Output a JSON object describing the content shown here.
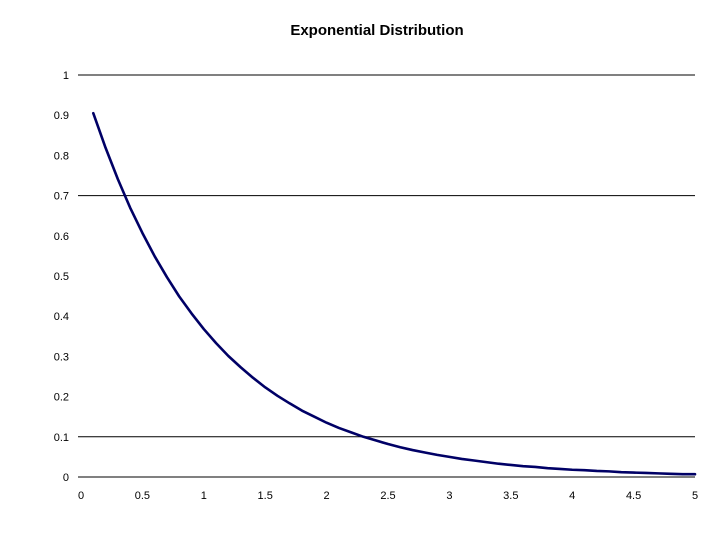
{
  "chart_data": {
    "type": "line",
    "title": "Exponential Distribution",
    "xlabel": "",
    "ylabel": "",
    "xlim": [
      0,
      5
    ],
    "ylim": [
      0,
      1
    ],
    "x_ticks": [
      "0",
      "0.5",
      "1",
      "1.5",
      "2",
      "2.5",
      "3",
      "3.5",
      "4",
      "4.5",
      "5"
    ],
    "y_ticks": [
      "0",
      "0.1",
      "0.2",
      "0.3",
      "0.4",
      "0.5",
      "0.6",
      "0.7",
      "0.8",
      "0.9",
      "1"
    ],
    "gridlines_y": [
      0.1,
      0.7,
      1
    ],
    "legend": "none",
    "series": [
      {
        "color": "#000066",
        "x": [
          0.1,
          0.2,
          0.3,
          0.4,
          0.5,
          0.6,
          0.7,
          0.8,
          0.9,
          1.0,
          1.1,
          1.2,
          1.3,
          1.4,
          1.5,
          1.6,
          1.7,
          1.8,
          1.9,
          2.0,
          2.1,
          2.2,
          2.3,
          2.4,
          2.5,
          2.6,
          2.7,
          2.8,
          2.9,
          3.0,
          3.1,
          3.2,
          3.3,
          3.4,
          3.5,
          3.6,
          3.7,
          3.8,
          3.9,
          4.0,
          4.1,
          4.2,
          4.3,
          4.4,
          4.5,
          4.6,
          4.7,
          4.8,
          4.9,
          5.0
        ],
        "values": [
          0.905,
          0.819,
          0.741,
          0.67,
          0.607,
          0.549,
          0.497,
          0.449,
          0.407,
          0.368,
          0.333,
          0.301,
          0.273,
          0.247,
          0.223,
          0.202,
          0.183,
          0.165,
          0.15,
          0.135,
          0.122,
          0.111,
          0.1,
          0.091,
          0.082,
          0.074,
          0.067,
          0.061,
          0.055,
          0.05,
          0.045,
          0.041,
          0.037,
          0.033,
          0.03,
          0.027,
          0.025,
          0.022,
          0.02,
          0.018,
          0.017,
          0.015,
          0.014,
          0.012,
          0.011,
          0.01,
          0.009,
          0.008,
          0.007,
          0.007
        ]
      }
    ]
  }
}
